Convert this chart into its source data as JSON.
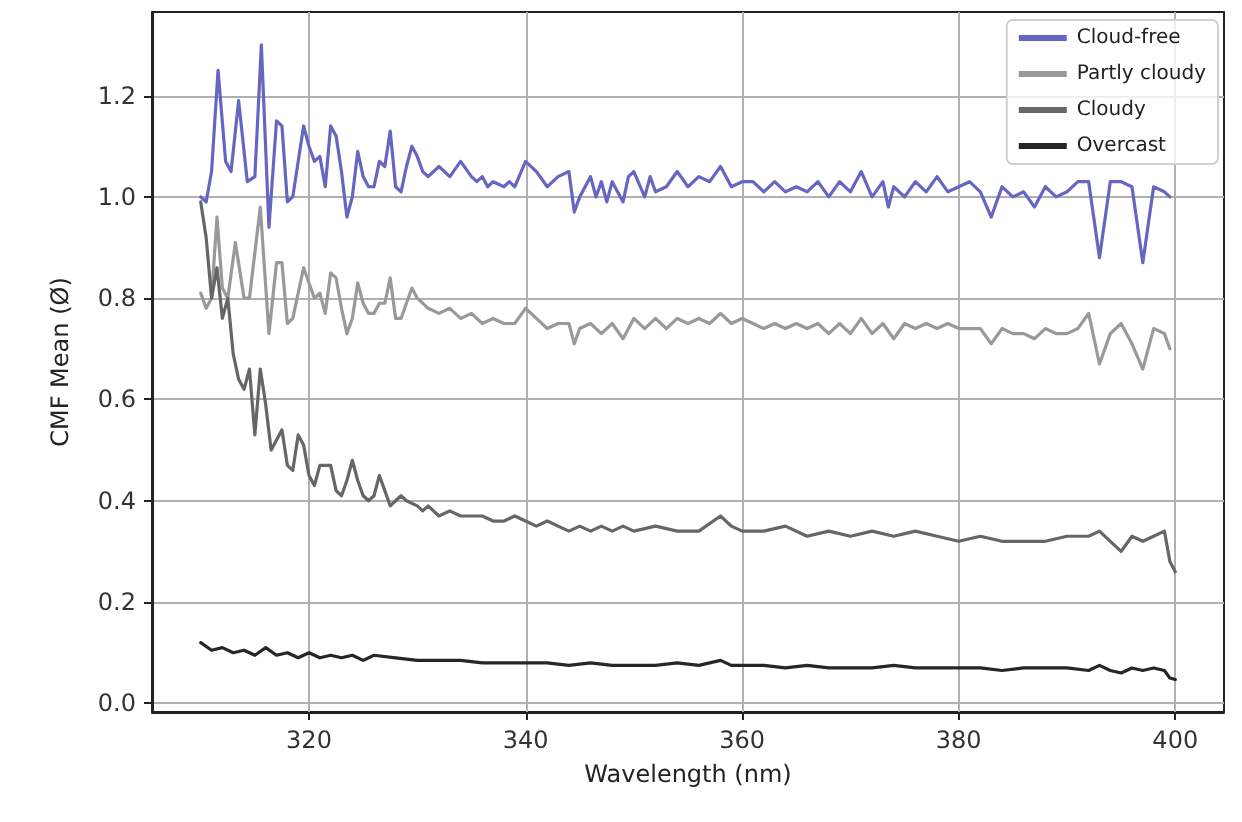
{
  "chart_data": {
    "type": "line",
    "xlabel": "Wavelength (nm)",
    "ylabel": "CMF Mean (Ø)",
    "xlim": [
      305.5,
      404.5
    ],
    "ylim": [
      -0.017,
      1.365
    ],
    "xticks": [
      320,
      340,
      360,
      380,
      400
    ],
    "yticks": [
      {
        "value": 0,
        "label": "0.0"
      },
      0.2,
      0.4,
      0.6,
      0.8,
      {
        "value": 1,
        "label": "1.0"
      },
      1.2
    ],
    "grid": true,
    "legend": "top right",
    "marker": "none",
    "line_style": "solid",
    "series": [
      {
        "name": "Cloud-free",
        "color": "#6666c2",
        "x": [
          310,
          310.5,
          311,
          311.6,
          312.3,
          312.8,
          313.5,
          314.3,
          315,
          315.6,
          316.3,
          317,
          317.5,
          318,
          318.5,
          319.5,
          320,
          320.5,
          321,
          321.5,
          322,
          322.5,
          323,
          323.5,
          324,
          324.5,
          325,
          325.5,
          326,
          326.5,
          327,
          327.5,
          328,
          328.5,
          329,
          329.5,
          330,
          330.5,
          331,
          332,
          333,
          334,
          335,
          335.5,
          336,
          336.5,
          337,
          338,
          338.5,
          339,
          340,
          341,
          342,
          343,
          344,
          344.5,
          345,
          346,
          346.5,
          347,
          347.5,
          348,
          349,
          349.5,
          350,
          351,
          351.5,
          352,
          353,
          354,
          355,
          356,
          357,
          358,
          358.5,
          359,
          360,
          361,
          362,
          363,
          364,
          365,
          366,
          367,
          368,
          369,
          370,
          371,
          372,
          373,
          373.5,
          374,
          375,
          376,
          377,
          378,
          379,
          380,
          381,
          382,
          383,
          384,
          385,
          386,
          387,
          388,
          389,
          390,
          391,
          392,
          393,
          394,
          395,
          396,
          397,
          398,
          399,
          399.5
        ],
        "values": [
          1.0,
          0.99,
          1.05,
          1.25,
          1.07,
          1.05,
          1.19,
          1.03,
          1.04,
          1.3,
          0.94,
          1.15,
          1.14,
          0.99,
          1.0,
          1.14,
          1.1,
          1.07,
          1.08,
          1.02,
          1.14,
          1.12,
          1.05,
          0.96,
          1.0,
          1.09,
          1.04,
          1.02,
          1.02,
          1.07,
          1.06,
          1.13,
          1.02,
          1.01,
          1.06,
          1.1,
          1.08,
          1.05,
          1.04,
          1.06,
          1.04,
          1.07,
          1.04,
          1.03,
          1.04,
          1.02,
          1.03,
          1.02,
          1.03,
          1.02,
          1.07,
          1.05,
          1.02,
          1.04,
          1.05,
          0.97,
          1.0,
          1.04,
          1.0,
          1.03,
          0.99,
          1.03,
          0.99,
          1.04,
          1.05,
          1.0,
          1.04,
          1.01,
          1.02,
          1.05,
          1.02,
          1.04,
          1.03,
          1.06,
          1.04,
          1.02,
          1.03,
          1.03,
          1.01,
          1.03,
          1.01,
          1.02,
          1.01,
          1.03,
          1.0,
          1.03,
          1.01,
          1.05,
          1.0,
          1.03,
          0.98,
          1.02,
          1.0,
          1.03,
          1.01,
          1.04,
          1.01,
          1.02,
          1.03,
          1.01,
          0.96,
          1.02,
          1.0,
          1.01,
          0.98,
          1.02,
          1.0,
          1.01,
          1.03,
          1.03,
          0.88,
          1.03,
          1.03,
          1.02,
          0.87,
          1.02,
          1.01,
          1.0
        ]
      },
      {
        "name": "Partly cloudy",
        "color": "#999999",
        "x": [
          310,
          310.5,
          311,
          311.5,
          312,
          312.5,
          313.2,
          314,
          314.5,
          315.5,
          316.3,
          317,
          317.5,
          318,
          318.5,
          319.5,
          320,
          320.5,
          321,
          321.5,
          322,
          322.5,
          323,
          323.5,
          324,
          324.5,
          325,
          325.5,
          326,
          326.5,
          327,
          327.5,
          328,
          328.5,
          329,
          329.5,
          330,
          331,
          332,
          333,
          334,
          335,
          336,
          337,
          338,
          339,
          340,
          341,
          342,
          343,
          344,
          344.5,
          345,
          346,
          347,
          348,
          349,
          350,
          351,
          352,
          353,
          354,
          355,
          356,
          357,
          358,
          359,
          360,
          361,
          362,
          363,
          364,
          365,
          366,
          367,
          368,
          369,
          370,
          371,
          372,
          373,
          374,
          375,
          376,
          377,
          378,
          379,
          380,
          381,
          382,
          383,
          384,
          385,
          386,
          387,
          388,
          389,
          390,
          391,
          392,
          393,
          394,
          395,
          396,
          397,
          398,
          399,
          399.5
        ],
        "values": [
          0.81,
          0.78,
          0.8,
          0.96,
          0.82,
          0.8,
          0.91,
          0.8,
          0.8,
          0.98,
          0.73,
          0.87,
          0.87,
          0.75,
          0.76,
          0.86,
          0.83,
          0.8,
          0.81,
          0.77,
          0.85,
          0.84,
          0.78,
          0.73,
          0.76,
          0.83,
          0.79,
          0.77,
          0.77,
          0.79,
          0.79,
          0.84,
          0.76,
          0.76,
          0.79,
          0.82,
          0.8,
          0.78,
          0.77,
          0.78,
          0.76,
          0.77,
          0.75,
          0.76,
          0.75,
          0.75,
          0.78,
          0.76,
          0.74,
          0.75,
          0.75,
          0.71,
          0.74,
          0.75,
          0.73,
          0.75,
          0.72,
          0.76,
          0.74,
          0.76,
          0.74,
          0.76,
          0.75,
          0.76,
          0.75,
          0.77,
          0.75,
          0.76,
          0.75,
          0.74,
          0.75,
          0.74,
          0.75,
          0.74,
          0.75,
          0.73,
          0.75,
          0.73,
          0.76,
          0.73,
          0.75,
          0.72,
          0.75,
          0.74,
          0.75,
          0.74,
          0.75,
          0.74,
          0.74,
          0.74,
          0.71,
          0.74,
          0.73,
          0.73,
          0.72,
          0.74,
          0.73,
          0.73,
          0.74,
          0.77,
          0.67,
          0.73,
          0.75,
          0.71,
          0.66,
          0.74,
          0.73,
          0.7
        ]
      },
      {
        "name": "Cloudy",
        "color": "#666666",
        "x": [
          310,
          310.5,
          311,
          311.5,
          312,
          312.5,
          313,
          313.5,
          314,
          314.5,
          315,
          315.5,
          316,
          316.5,
          317,
          317.5,
          318,
          318.5,
          319,
          319.5,
          320,
          320.5,
          321,
          321.5,
          322,
          322.5,
          323,
          323.5,
          324,
          324.5,
          325,
          325.5,
          326,
          326.5,
          327,
          327.5,
          328,
          328.5,
          329,
          330,
          330.5,
          331,
          332,
          333,
          334,
          335,
          336,
          337,
          338,
          339,
          340,
          341,
          342,
          343,
          344,
          345,
          346,
          347,
          348,
          349,
          350,
          352,
          354,
          356,
          358,
          359,
          360,
          362,
          364,
          366,
          368,
          370,
          372,
          374,
          376,
          378,
          380,
          382,
          384,
          386,
          388,
          390,
          392,
          393,
          394,
          395,
          396,
          397,
          398,
          399,
          399.5,
          400
        ],
        "values": [
          0.99,
          0.92,
          0.8,
          0.86,
          0.76,
          0.8,
          0.69,
          0.64,
          0.62,
          0.66,
          0.53,
          0.66,
          0.59,
          0.5,
          0.52,
          0.54,
          0.47,
          0.46,
          0.53,
          0.51,
          0.45,
          0.43,
          0.47,
          0.47,
          0.47,
          0.42,
          0.41,
          0.44,
          0.48,
          0.44,
          0.41,
          0.4,
          0.41,
          0.45,
          0.42,
          0.39,
          0.4,
          0.41,
          0.4,
          0.39,
          0.38,
          0.39,
          0.37,
          0.38,
          0.37,
          0.37,
          0.37,
          0.36,
          0.36,
          0.37,
          0.36,
          0.35,
          0.36,
          0.35,
          0.34,
          0.35,
          0.34,
          0.35,
          0.34,
          0.35,
          0.34,
          0.35,
          0.34,
          0.34,
          0.37,
          0.35,
          0.34,
          0.34,
          0.35,
          0.33,
          0.34,
          0.33,
          0.34,
          0.33,
          0.34,
          0.33,
          0.32,
          0.33,
          0.32,
          0.32,
          0.32,
          0.33,
          0.33,
          0.34,
          0.32,
          0.3,
          0.33,
          0.32,
          0.33,
          0.34,
          0.28,
          0.26
        ]
      },
      {
        "name": "Overcast",
        "color": "#262626",
        "x": [
          310,
          311,
          312,
          313,
          314,
          315,
          316,
          317,
          318,
          319,
          320,
          321,
          322,
          323,
          324,
          325,
          326,
          328,
          330,
          332,
          334,
          336,
          338,
          340,
          342,
          344,
          346,
          348,
          350,
          352,
          354,
          356,
          358,
          359,
          360,
          362,
          364,
          366,
          368,
          370,
          372,
          374,
          376,
          378,
          380,
          382,
          384,
          386,
          388,
          390,
          392,
          393,
          394,
          395,
          396,
          397,
          398,
          399,
          399.5,
          400
        ],
        "values": [
          0.12,
          0.105,
          0.11,
          0.1,
          0.105,
          0.095,
          0.11,
          0.095,
          0.1,
          0.09,
          0.1,
          0.09,
          0.095,
          0.09,
          0.095,
          0.085,
          0.095,
          0.09,
          0.085,
          0.085,
          0.085,
          0.08,
          0.08,
          0.08,
          0.08,
          0.075,
          0.08,
          0.075,
          0.075,
          0.075,
          0.08,
          0.075,
          0.085,
          0.075,
          0.075,
          0.075,
          0.07,
          0.075,
          0.07,
          0.07,
          0.07,
          0.075,
          0.07,
          0.07,
          0.07,
          0.07,
          0.065,
          0.07,
          0.07,
          0.07,
          0.065,
          0.075,
          0.065,
          0.06,
          0.07,
          0.065,
          0.07,
          0.065,
          0.05,
          0.047
        ]
      }
    ]
  }
}
